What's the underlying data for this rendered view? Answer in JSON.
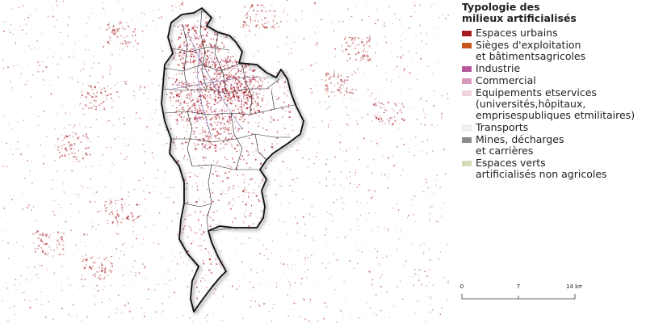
{
  "legend": {
    "title": "Typologie des\nmilieux artificialisés",
    "items": [
      {
        "label": "Espaces urbains",
        "color": "#a81c20"
      },
      {
        "label": "Sièges d'exploitation\net bâtimentsagricoles",
        "color": "#c8561a"
      },
      {
        "label": "Industrie",
        "color": "#b5589c"
      },
      {
        "label": "Commercial",
        "color": "#d898bc"
      },
      {
        "label": "Equipements etservices\n(universités,hôpitaux,\nemprisespubliques etmilitaires)",
        "color": "#f2d2df"
      },
      {
        "label": "Transports",
        "color": "#f3f3f3"
      },
      {
        "label": "Mines, décharges\net carrières",
        "color": "#8a8a8a"
      },
      {
        "label": "Espaces verts\nartificialisés non agricoles",
        "color": "#d3dcb4"
      }
    ]
  },
  "scale": {
    "ticks": [
      "0",
      "7",
      "14 km"
    ]
  }
}
